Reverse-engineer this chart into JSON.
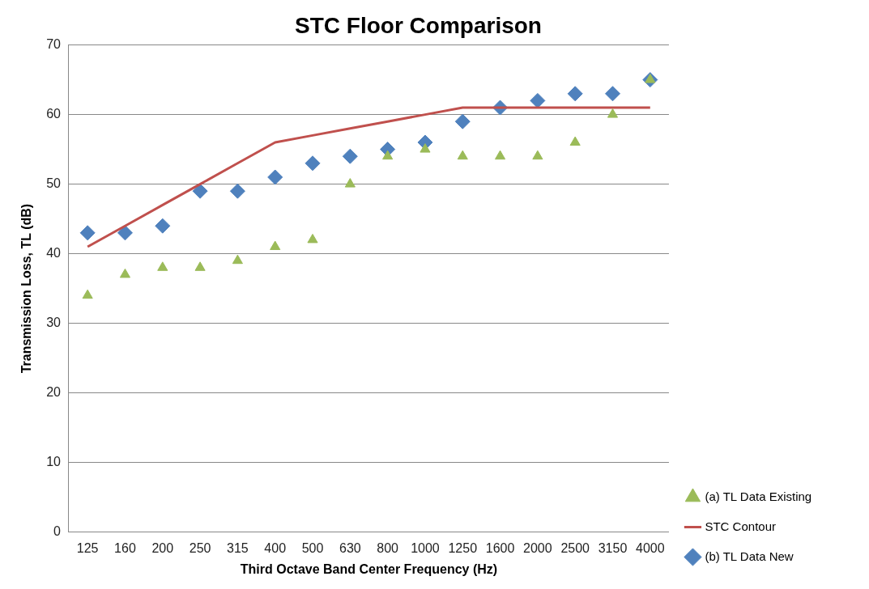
{
  "chart_data": {
    "type": "scatter",
    "title": "STC Floor Comparison",
    "xlabel": "Third Octave Band Center Frequency (Hz)",
    "ylabel": "Transmission Loss, TL (dB)",
    "categories": [
      "125",
      "160",
      "200",
      "250",
      "315",
      "400",
      "500",
      "630",
      "800",
      "1000",
      "1250",
      "1600",
      "2000",
      "2500",
      "3150",
      "4000"
    ],
    "series": [
      {
        "name": "(a) TL Data Existing",
        "marker": "triangle",
        "color": "#9bbb59",
        "values": [
          34,
          37,
          38,
          38,
          39,
          41,
          42,
          50,
          54,
          55,
          54,
          54,
          54,
          56,
          60,
          65
        ]
      },
      {
        "name": "STC Contour",
        "type": "line",
        "marker": "none",
        "line_style": "solid",
        "color": "#c0504d",
        "values": [
          41,
          44,
          47,
          50,
          53,
          56,
          57,
          58,
          59,
          60,
          61,
          61,
          61,
          61,
          61,
          61
        ]
      },
      {
        "name": "(b) TL Data New",
        "marker": "diamond",
        "color": "#4f81bd",
        "values": [
          43,
          43,
          44,
          49,
          49,
          51,
          53,
          54,
          55,
          56,
          59,
          61,
          62,
          63,
          63,
          65
        ]
      }
    ],
    "ylim": [
      0,
      70
    ],
    "yticks": [
      0,
      10,
      20,
      30,
      40,
      50,
      60,
      70
    ],
    "grid": "y",
    "legend": "bottom right"
  }
}
